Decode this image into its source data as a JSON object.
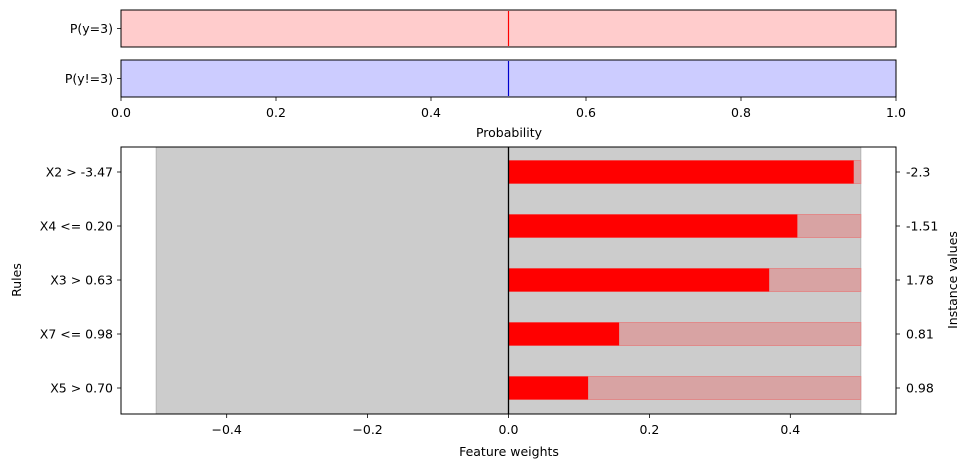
{
  "chart_data": [
    {
      "type": "bar",
      "orientation": "horizontal",
      "panel": "probability",
      "categories": [
        "P(y=3)",
        "P(y!=3)"
      ],
      "values": [
        0.5,
        0.5
      ],
      "colors": {
        "P(y=3)": "#ffcccc",
        "P(y!=3)": "#ccccff"
      },
      "marker_colors": {
        "P(y=3)": "#ff0000",
        "P(y!=3)": "#0000cc"
      },
      "xlabel": "Probability",
      "xlim": [
        0,
        1
      ],
      "xticks": [
        "0.0",
        "0.2",
        "0.4",
        "0.6",
        "0.8",
        "1.0"
      ],
      "xtick_values": [
        0,
        0.2,
        0.4,
        0.6,
        0.8,
        1.0
      ]
    },
    {
      "type": "bar",
      "orientation": "horizontal",
      "panel": "feature-weights",
      "categories": [
        "X2 > -3.47",
        "X4 <= 0.20",
        "X3 > 0.63",
        "X7 <= 0.98",
        "X5 > 0.70"
      ],
      "series": [
        {
          "values": [
            0.49,
            0.41,
            0.37,
            0.157,
            0.113
          ]
        },
        {
          "values": [
            0.5,
            0.5,
            0.5,
            0.5,
            0.5
          ]
        }
      ],
      "instance_values": [
        "-2.3",
        "-1.51",
        "1.78",
        "0.81",
        "0.98"
      ],
      "background_range": [
        -0.5,
        0.5
      ],
      "xlim": [
        -0.55,
        0.55
      ],
      "xticks": [
        "−0.4",
        "−0.2",
        "0.0",
        "0.2",
        "0.4"
      ],
      "xtick_values": [
        -0.4,
        -0.2,
        0.0,
        0.2,
        0.4
      ],
      "xlabel": "Feature weights",
      "ylabel": "Rules",
      "ylabel_right": "Instance values",
      "colors": {
        "weight": "#ff0000",
        "range": "#d8a3a3",
        "background": "#cccccc"
      }
    }
  ]
}
